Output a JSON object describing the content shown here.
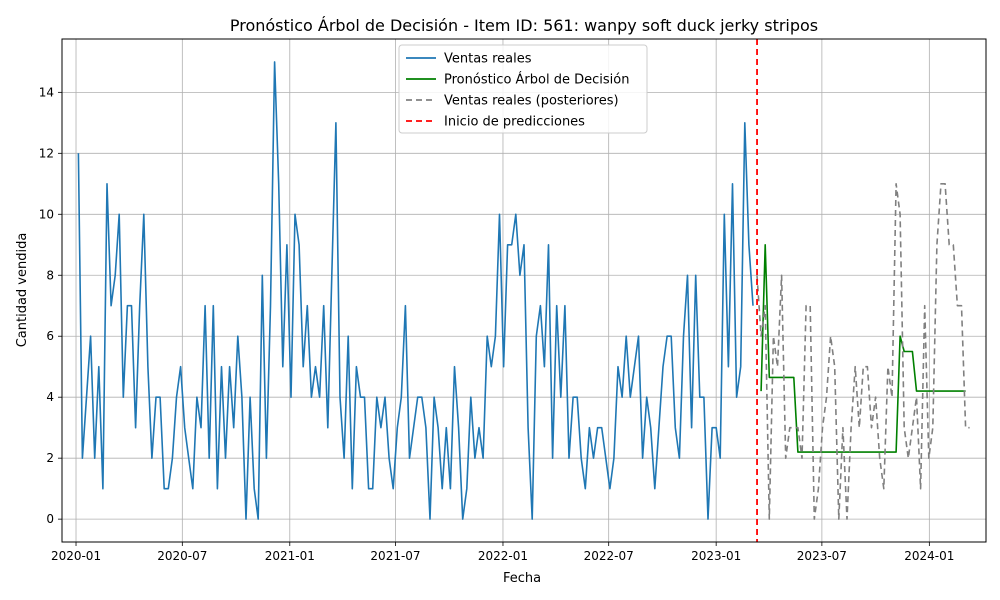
{
  "chart_data": {
    "type": "line",
    "title": "Pronóstico Árbol de Decisión - Item ID: 561: wanpy soft duck jerky stripos",
    "xlabel": "Fecha",
    "ylabel": "Cantidad vendida",
    "xlim": [
      "2019-12-08",
      "2024-04-07"
    ],
    "ylim": [
      -0.75,
      15.75
    ],
    "grid": true,
    "legend_position": "top-center",
    "x_ticks": [
      "2020-01-01",
      "2020-07-01",
      "2021-01-01",
      "2021-07-01",
      "2022-01-01",
      "2022-07-01",
      "2023-01-01",
      "2023-07-01",
      "2024-01-01"
    ],
    "x_tick_labels": [
      "2020-01",
      "2020-07",
      "2021-01",
      "2021-07",
      "2022-01",
      "2022-07",
      "2023-01",
      "2023-07",
      "2024-01"
    ],
    "y_ticks": [
      0,
      2,
      4,
      6,
      8,
      10,
      12,
      14
    ],
    "y_tick_labels": [
      "0",
      "2",
      "4",
      "6",
      "8",
      "10",
      "12",
      "14"
    ],
    "forecast_start": "2023-03-12",
    "series": [
      {
        "name": "Ventas reales",
        "color": "#1f77b4",
        "dash": "solid",
        "start": "2020-01-05",
        "step_days": 7,
        "values": [
          12,
          2,
          4,
          6,
          2,
          5,
          1,
          11,
          7,
          8,
          10,
          4,
          7,
          7,
          3,
          7,
          10,
          5,
          2,
          4,
          4,
          1,
          1,
          2,
          4,
          5,
          3,
          2,
          1,
          4,
          3,
          7,
          2,
          7,
          1,
          5,
          2,
          5,
          3,
          6,
          4,
          0,
          4,
          1,
          0,
          8,
          2,
          7,
          15,
          11,
          5,
          9,
          4,
          10,
          9,
          5,
          7,
          4,
          5,
          4,
          7,
          3,
          8,
          13,
          4,
          2,
          6,
          1,
          5,
          4,
          4,
          1,
          1,
          4,
          3,
          4,
          2,
          1,
          3,
          4,
          7,
          2,
          3,
          4,
          4,
          3,
          0,
          4,
          3,
          1,
          3,
          1,
          5,
          3,
          0,
          1,
          4,
          2,
          3,
          2,
          6,
          5,
          6,
          10,
          5,
          9,
          9,
          10,
          8,
          9,
          3,
          0,
          6,
          7,
          5,
          9,
          2,
          7,
          4,
          7,
          2,
          4,
          4,
          2,
          1,
          3,
          2,
          3,
          3,
          2,
          1,
          2,
          5,
          4,
          6,
          4,
          5,
          6,
          2,
          4,
          3,
          1,
          3,
          5,
          6,
          6,
          3,
          2,
          6,
          8,
          3,
          8,
          4,
          4,
          0,
          3,
          3,
          2,
          10,
          5,
          11,
          4,
          5,
          13,
          9,
          7
        ]
      },
      {
        "name": "Pronóstico Árbol de Decisión",
        "color": "#008000",
        "dash": "solid",
        "start": "2023-03-19",
        "step_days": 7,
        "values": [
          4.2,
          9,
          4.65,
          4.65,
          4.65,
          4.65,
          4.65,
          4.65,
          4.65,
          2.2,
          2.2,
          2.2,
          2.2,
          2.2,
          2.2,
          2.2,
          2.2,
          2.2,
          2.2,
          2.2,
          2.2,
          2.2,
          2.2,
          2.2,
          2.2,
          2.2,
          2.2,
          2.2,
          2.2,
          2.2,
          2.2,
          2.2,
          2.2,
          2.2,
          6,
          5.5,
          5.5,
          5.5,
          4.2,
          4.2,
          4.2,
          4.2,
          4.2,
          4.2,
          4.2,
          4.2,
          4.2,
          4.2,
          4.2,
          4.2,
          4.2
        ]
      },
      {
        "name": "Ventas reales (posteriores)",
        "color": "#808080",
        "dash": "dashed",
        "start": "2023-03-12",
        "step_days": 7,
        "values": [
          8,
          6,
          7,
          0,
          6,
          5,
          8,
          2,
          3,
          3,
          3,
          2,
          7,
          7,
          0,
          1,
          3,
          4,
          6,
          5,
          0,
          3,
          0,
          3,
          5,
          3,
          5,
          5,
          3,
          4,
          2,
          1,
          5,
          4,
          11,
          10,
          3,
          2,
          3,
          4,
          1,
          7,
          2,
          3,
          9,
          11,
          11,
          9,
          9,
          7,
          7,
          3,
          3
        ]
      }
    ],
    "annotations": [
      {
        "type": "vline",
        "label": "Inicio de predicciones",
        "x": "2023-03-12",
        "color": "#ff0000",
        "dash": "dashed"
      }
    ]
  }
}
